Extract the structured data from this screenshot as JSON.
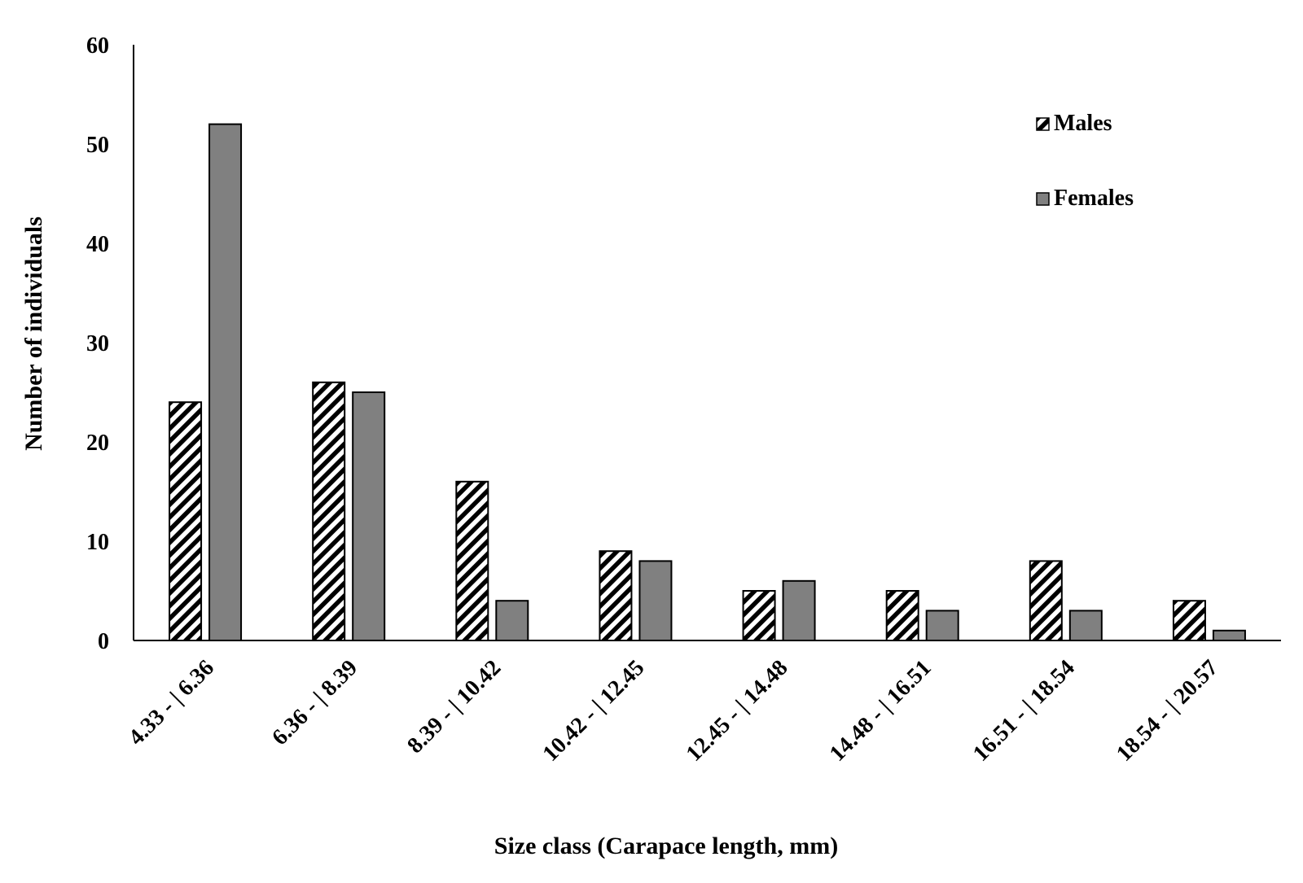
{
  "chart_data": {
    "type": "bar",
    "title": "",
    "xlabel": "Size class (Carapace length, mm)",
    "ylabel": "Number of individuals",
    "ylim": [
      0,
      60
    ],
    "yticks": [
      0,
      10,
      20,
      30,
      40,
      50,
      60
    ],
    "categories": [
      "4.33 - | 6.36",
      "6.36 - | 8.39",
      "8.39 - | 10.42",
      "10.42 - | 12.45",
      "12.45 - | 14.48",
      "14.48 - | 16.51",
      "16.51 - | 18.54",
      "18.54 - | 20.57"
    ],
    "series": [
      {
        "name": "Males",
        "values": [
          24,
          26,
          16,
          9,
          5,
          5,
          8,
          4
        ],
        "fill": "hatched",
        "color": "#000000"
      },
      {
        "name": "Females",
        "values": [
          52,
          25,
          4,
          8,
          6,
          3,
          3,
          1
        ],
        "fill": "solid",
        "color": "#808080"
      }
    ],
    "grid": false,
    "legend_position": "top-right"
  }
}
